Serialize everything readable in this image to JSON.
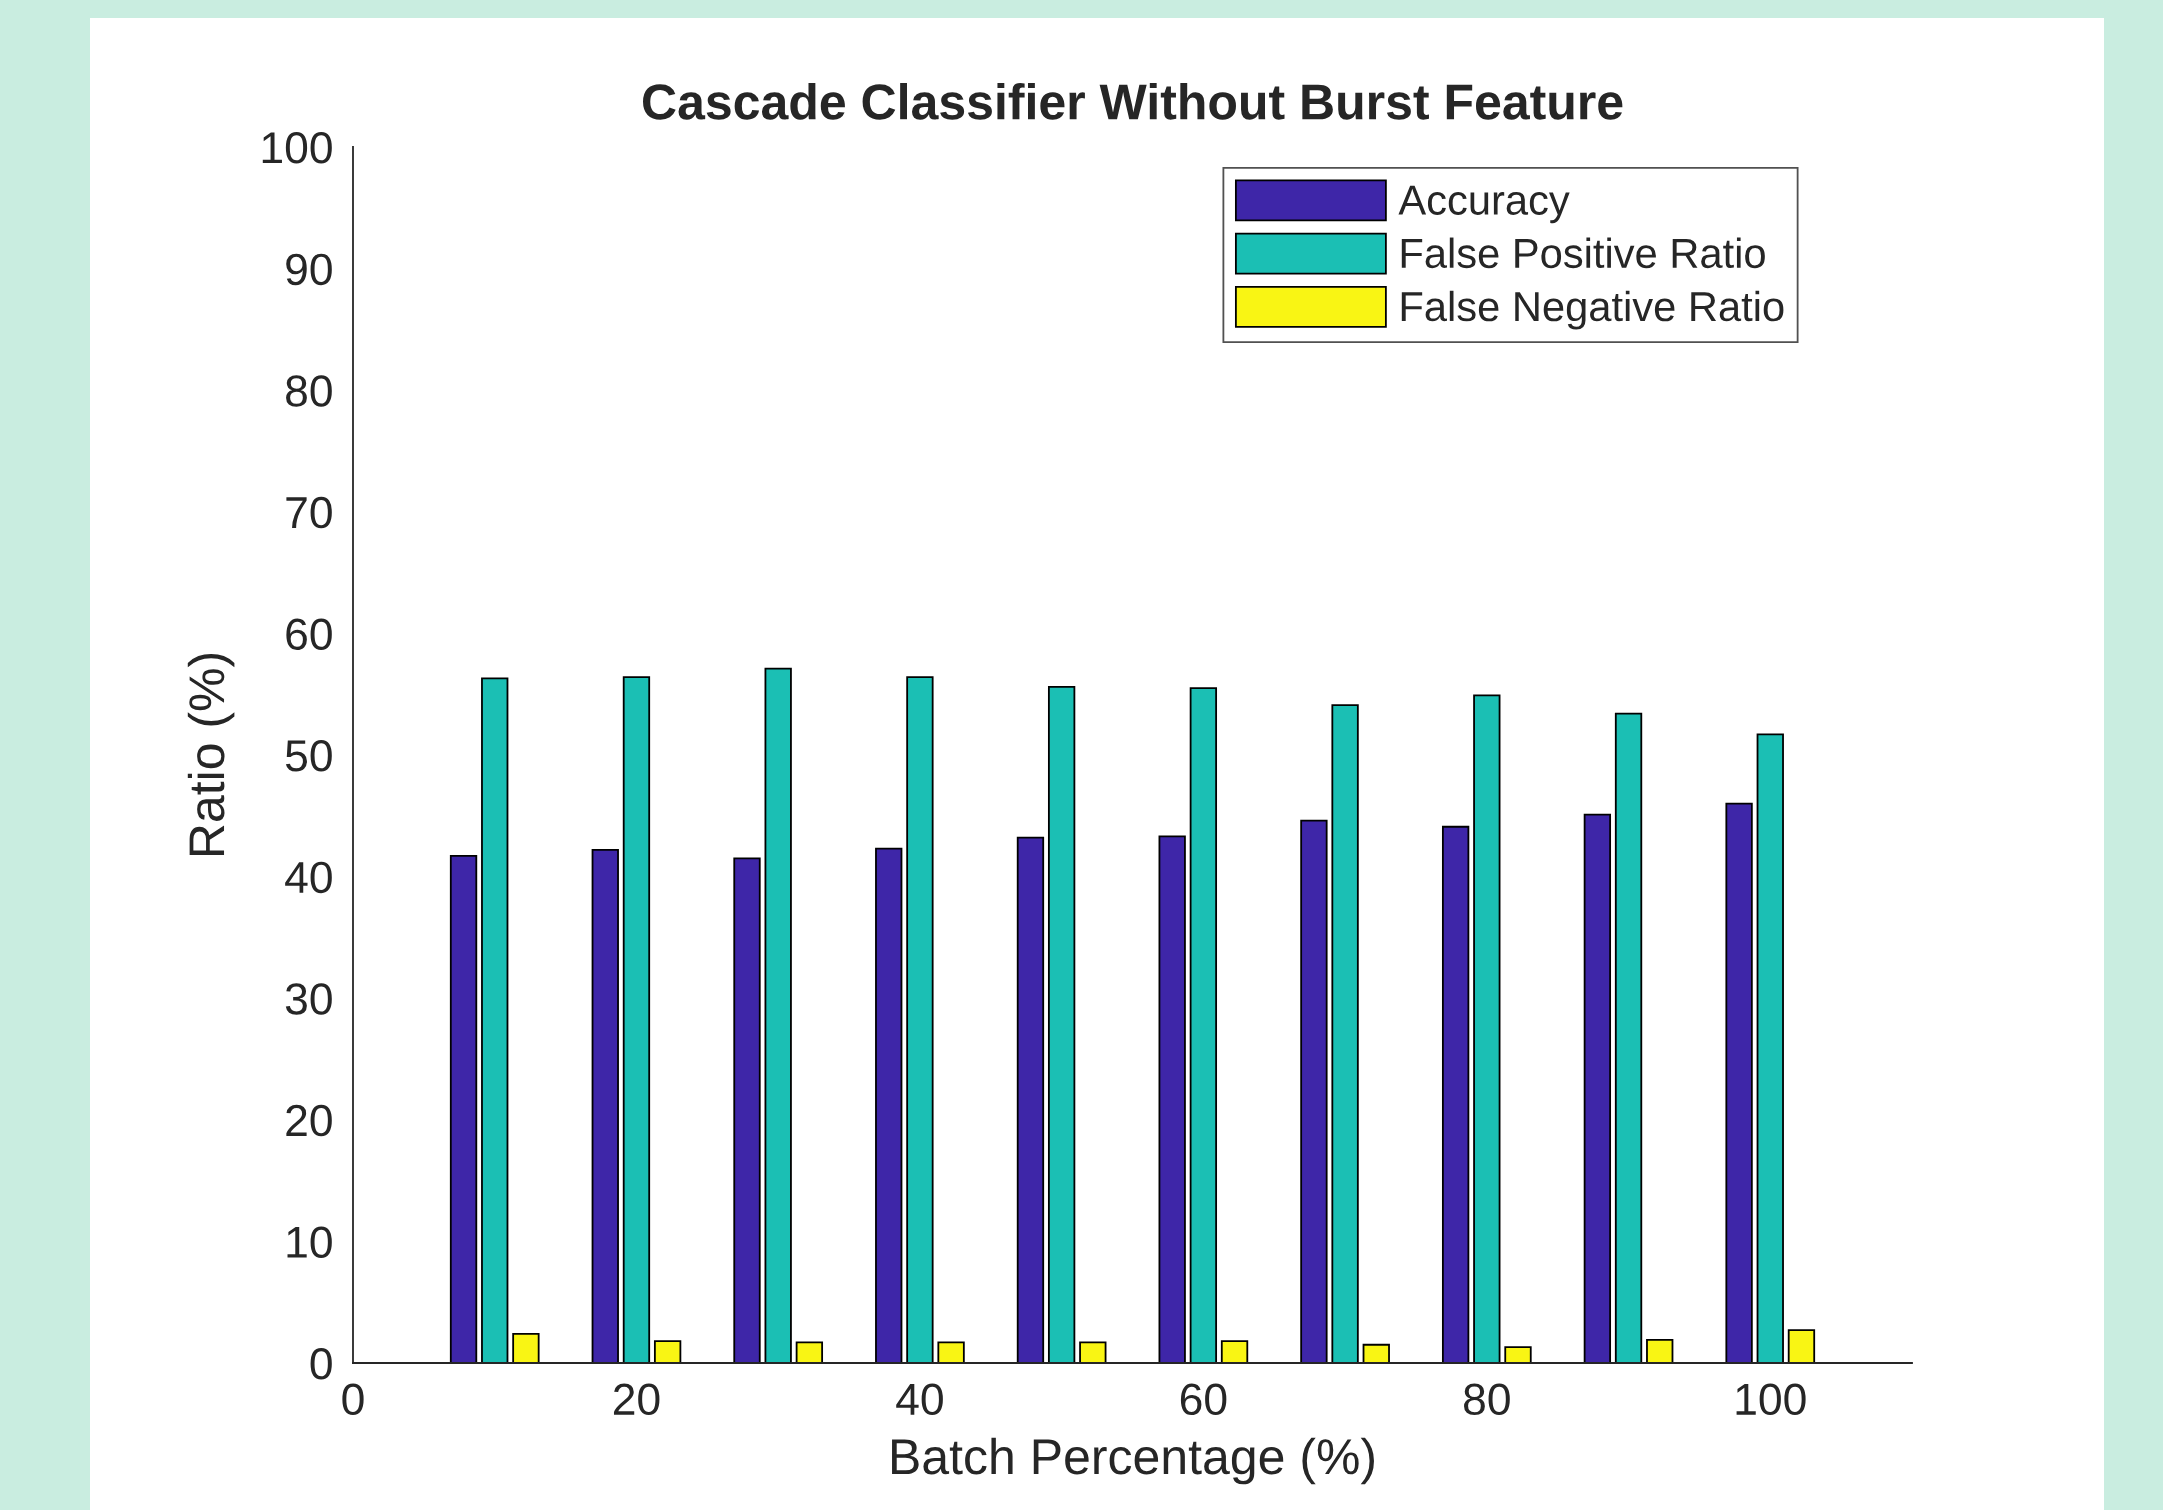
{
  "chart_data": {
    "type": "bar",
    "title": "Cascade Classifier Without Burst Feature",
    "xlabel": "Batch Percentage (%)",
    "ylabel": "Ratio (%)",
    "x": [
      10,
      20,
      30,
      40,
      50,
      60,
      70,
      80,
      90,
      100
    ],
    "series": [
      {
        "name": "Accuracy",
        "color": "#3e26a8",
        "values": [
          41.7,
          42.2,
          41.5,
          42.3,
          43.2,
          43.3,
          44.6,
          44.1,
          45.1,
          46.0
        ]
      },
      {
        "name": "False Positive Ratio",
        "color": "#1bbfb4",
        "values": [
          56.3,
          56.4,
          57.1,
          56.4,
          55.6,
          55.5,
          54.1,
          54.9,
          53.4,
          51.7
        ]
      },
      {
        "name": "False Negative Ratio",
        "color": "#f9f514",
        "values": [
          2.4,
          1.8,
          1.7,
          1.7,
          1.7,
          1.8,
          1.5,
          1.3,
          1.9,
          2.7
        ]
      }
    ],
    "xlim": [
      0,
      110
    ],
    "xticks": [
      0,
      20,
      40,
      60,
      80,
      100
    ],
    "ylim": [
      0,
      100
    ],
    "yticks": [
      0,
      10,
      20,
      30,
      40,
      50,
      60,
      70,
      80,
      90,
      100
    ],
    "grid": false,
    "legend": "top right"
  }
}
